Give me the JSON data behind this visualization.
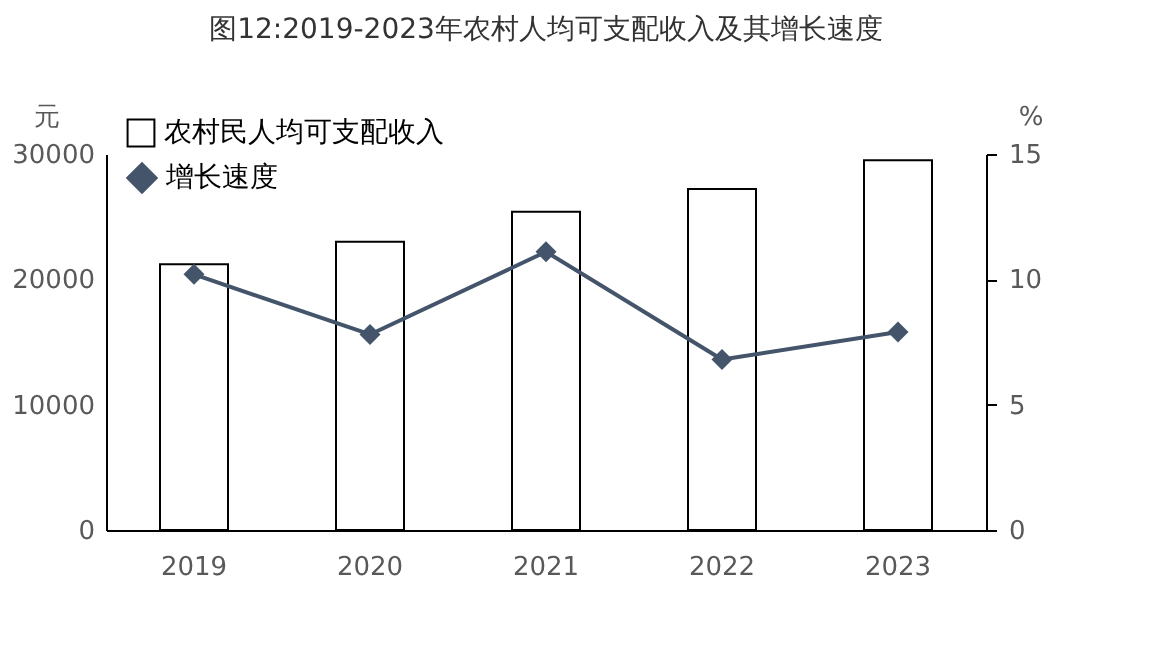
{
  "chart_data": {
    "type": "bar",
    "title": "图12:2019-2023年农村人均可支配收入及其增长速度",
    "ylabel": "元",
    "y2label": "%",
    "categories": [
      "2019",
      "2020",
      "2021",
      "2022",
      "2023"
    ],
    "series": [
      {
        "name": "农村民人均可支配收入",
        "color": "#ffffff",
        "values": [
          21200,
          23000,
          25400,
          27200,
          29500
        ]
      },
      {
        "name": "增长速度",
        "type": "line",
        "axis": "y2",
        "color": "#44546a",
        "marker": "diamond",
        "line_style": "solid",
        "values": [
          10.2,
          7.8,
          11.1,
          6.8,
          7.9
        ]
      }
    ],
    "ylim": [
      0,
      30000
    ],
    "yticks": [
      0,
      10000,
      20000,
      30000
    ],
    "y2lim": [
      0,
      15
    ],
    "y2ticks": [
      0,
      5,
      10,
      15
    ],
    "grid": false,
    "legend": "top left"
  }
}
